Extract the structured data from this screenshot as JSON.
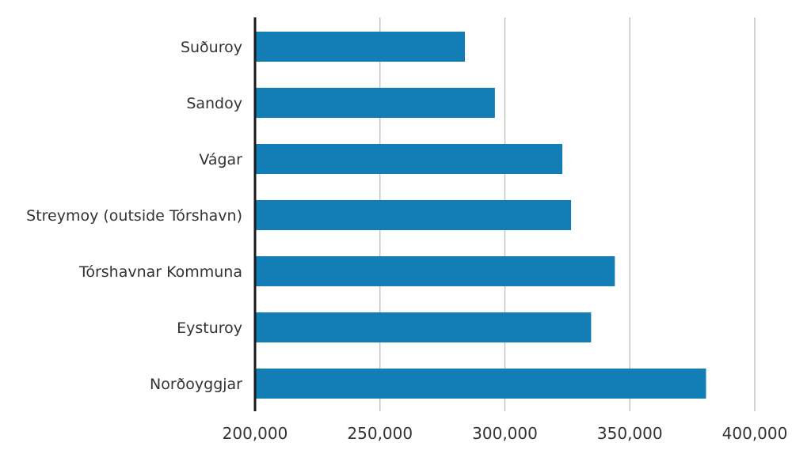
{
  "chart_data": {
    "type": "bar",
    "orientation": "horizontal",
    "title": "",
    "xlabel": "",
    "ylabel": "",
    "categories": [
      "Suðuroy",
      "Sandoy",
      "Vágar",
      "Streymoy (outside Tórshavn)",
      "Tórshavnar Kommuna",
      "Eysturoy",
      "Norðoyggjar"
    ],
    "values": [
      284000,
      296000,
      323000,
      326500,
      344000,
      334500,
      380500
    ],
    "xlim": [
      200000,
      400000
    ],
    "xticks": [
      200000,
      250000,
      300000,
      350000,
      400000
    ],
    "xtick_labels": [
      "200,000",
      "250,000",
      "300,000",
      "350,000",
      "400,000"
    ],
    "bar_color": "#137db5",
    "grid": "vertical",
    "legend": "none"
  }
}
